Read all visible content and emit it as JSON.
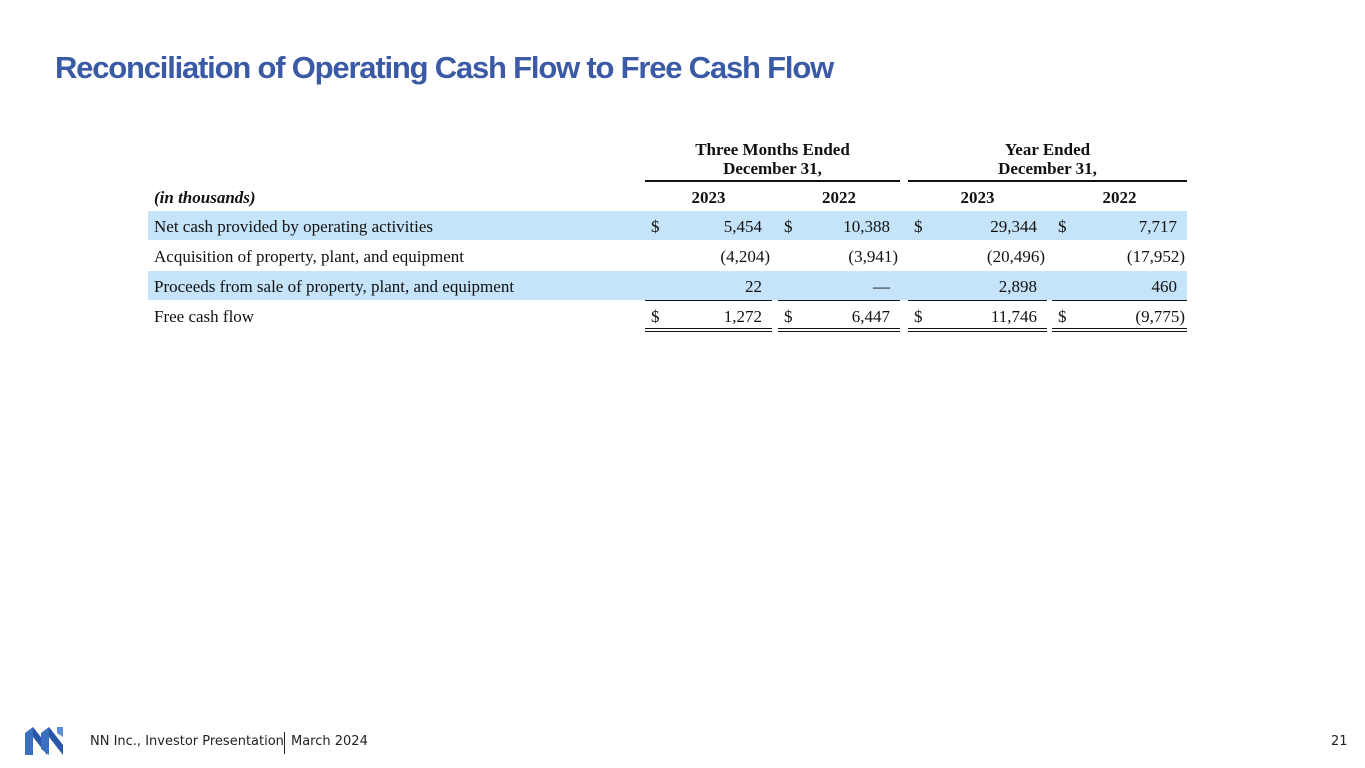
{
  "header": {
    "title": "Reconciliation of Operating Cash Flow to Free Cash Flow"
  },
  "table": {
    "groups": [
      {
        "lines": [
          "Three Months Ended",
          "December 31,"
        ]
      },
      {
        "lines": [
          "Year Ended",
          "December 31,"
        ]
      }
    ],
    "unit_label": "(in thousands)",
    "columns": [
      "2023",
      "2022",
      "2023",
      "2022"
    ],
    "rows": [
      {
        "label": "Net cash provided by operating activities",
        "cells": [
          {
            "currency": "$",
            "value": "5,454"
          },
          {
            "currency": "$",
            "value": "10,388"
          },
          {
            "currency": "$",
            "value": "29,344"
          },
          {
            "currency": "$",
            "value": "7,717"
          }
        ]
      },
      {
        "label": "Acquisition of property, plant, and equipment",
        "cells": [
          {
            "value": "(4,204)"
          },
          {
            "value": "(3,941)"
          },
          {
            "value": "(20,496)"
          },
          {
            "value": "(17,952)"
          }
        ]
      },
      {
        "label": "Proceeds from sale of property, plant, and equipment",
        "cells": [
          {
            "value": "22"
          },
          {
            "value": "—"
          },
          {
            "value": "2,898"
          },
          {
            "value": "460"
          }
        ]
      },
      {
        "label": "Free cash flow",
        "cells": [
          {
            "currency": "$",
            "value": "1,272"
          },
          {
            "currency": "$",
            "value": "6,447"
          },
          {
            "currency": "$",
            "value": "11,746"
          },
          {
            "currency": "$",
            "value": "(9,775)"
          }
        ]
      }
    ]
  },
  "footer": {
    "company": "NN Inc., Investor Presentation",
    "date": "March 2024",
    "page": "21"
  }
}
